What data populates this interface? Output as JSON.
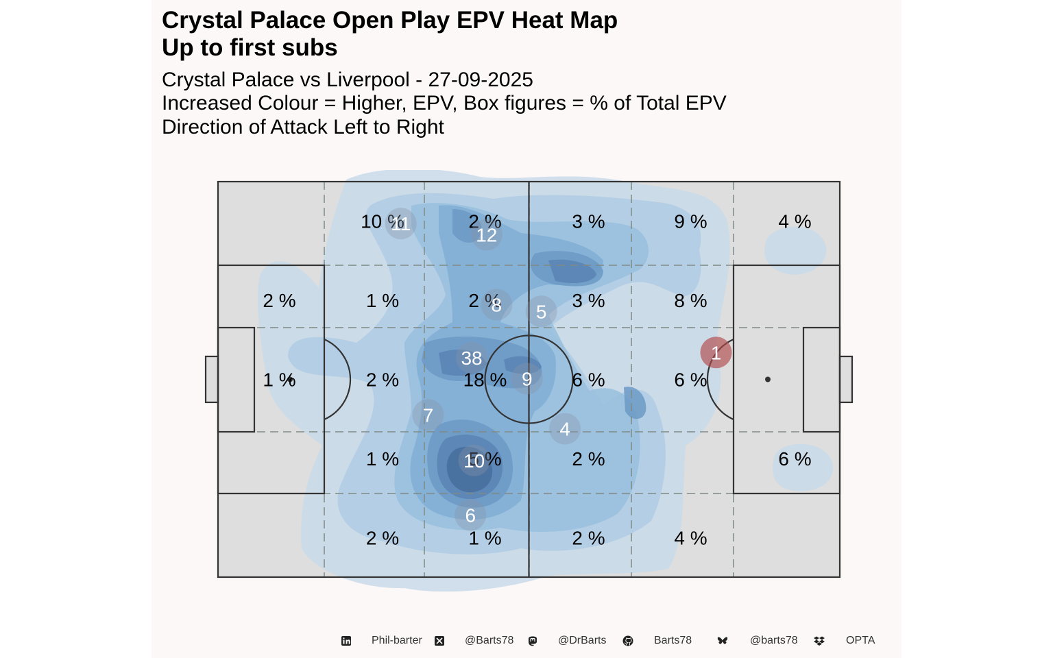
{
  "title": {
    "line1": "Crystal Palace Open Play EPV Heat Map",
    "line2": "Up to first subs"
  },
  "subtitle": {
    "line1": "Crystal Palace vs Liverpool - 27-09-2025",
    "line2": "Increased Colour = Higher, EPV, Box figures = % of Total EPV",
    "line3": "Direction of Attack Left to Right"
  },
  "colors": {
    "panel_background": "#fdf8f8",
    "pitch_fill": "#dedede",
    "pitch_lines": "#333333",
    "zone_grid": "#7f8a86",
    "density_palette": [
      "#c8dbe9",
      "#b0cde4",
      "#98bfde",
      "#81aed5",
      "#6c9ac6",
      "#5884b4",
      "#466e9e",
      "#375a88"
    ],
    "player_marker": "#8a93a6",
    "opponent_marker": "#b04a4a"
  },
  "chart_data": {
    "type": "heatmap",
    "title": "Crystal Palace Open Play EPV Heat Map",
    "subtitle": "Up to first subs",
    "xlabel": "",
    "ylabel": "",
    "value_unit": "% of Total EPV",
    "columns": 6,
    "rows": 5,
    "zone_labels": [
      [
        "",
        "10 %",
        "2 %",
        "3 %",
        "9 %",
        "4 %"
      ],
      [
        "2 %",
        "1 %",
        "2 %",
        "3 %",
        "8 %",
        ""
      ],
      [
        "1 %",
        "2 %",
        "18 %",
        "6 %",
        "6 %",
        ""
      ],
      [
        "",
        "1 %",
        "5 %",
        "2 %",
        "",
        "6 %"
      ],
      [
        "",
        "2 %",
        "1 %",
        "2 %",
        "4 %",
        ""
      ]
    ],
    "zone_values": [
      [
        null,
        10,
        2,
        3,
        9,
        4
      ],
      [
        2,
        1,
        2,
        3,
        8,
        null
      ],
      [
        1,
        2,
        18,
        6,
        6,
        null
      ],
      [
        null,
        1,
        5,
        2,
        null,
        6
      ],
      [
        null,
        2,
        1,
        2,
        4,
        null
      ]
    ],
    "player_positions": [
      {
        "label": "11",
        "x": 29.4,
        "y": 10.6,
        "team": "home"
      },
      {
        "label": "12",
        "x": 43.2,
        "y": 13.4,
        "team": "home"
      },
      {
        "label": "8",
        "x": 44.8,
        "y": 31.1,
        "team": "home"
      },
      {
        "label": "5",
        "x": 52.0,
        "y": 32.8,
        "team": "home"
      },
      {
        "label": "38",
        "x": 40.8,
        "y": 44.5,
        "team": "home"
      },
      {
        "label": "9",
        "x": 49.7,
        "y": 49.8,
        "team": "home"
      },
      {
        "label": "7",
        "x": 33.8,
        "y": 59.0,
        "team": "home"
      },
      {
        "label": "4",
        "x": 55.8,
        "y": 62.5,
        "team": "home"
      },
      {
        "label": "10",
        "x": 41.2,
        "y": 70.5,
        "team": "home"
      },
      {
        "label": "6",
        "x": 40.6,
        "y": 84.3,
        "team": "home"
      },
      {
        "label": "1",
        "x": 80.1,
        "y": 43.2,
        "team": "away"
      }
    ]
  },
  "footer": {
    "items": [
      {
        "icon": "linkedin-icon",
        "text": "Phil-barter"
      },
      {
        "icon": "x-twitter-icon",
        "text": "@Barts78"
      },
      {
        "icon": "mastodon-icon",
        "text": "@DrBarts"
      },
      {
        "icon": "github-icon",
        "text": "Barts78"
      },
      {
        "icon": "bluesky-icon",
        "text": "@barts78"
      },
      {
        "icon": "dropbox-icon",
        "text": "OPTA"
      }
    ]
  }
}
